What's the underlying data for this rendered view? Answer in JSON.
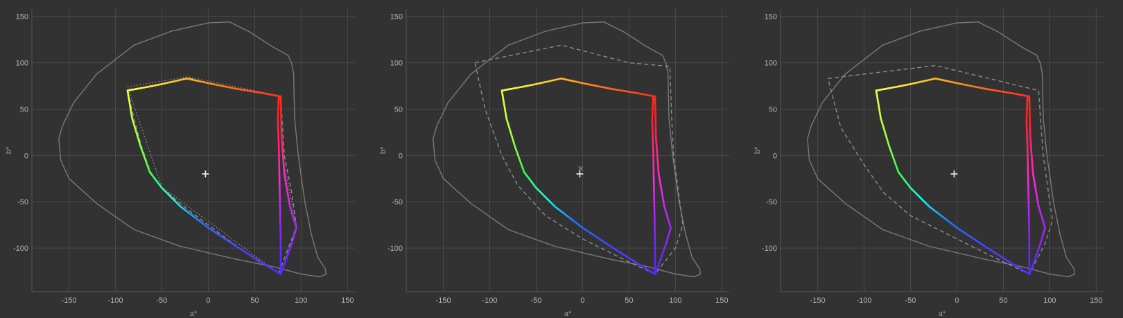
{
  "colors": {
    "background": "#323232",
    "grid": "#4a4a4a",
    "tick_text": "#b4b4b4",
    "axis_text": "#9a9a9a",
    "frame": "#555555",
    "spectral_locus": "#7a7a7a",
    "dashed_gamut": "#8c8c8c",
    "marker": "#f0f0f0",
    "hue_stops": [
      "#ff2222",
      "#ff8c14",
      "#ffff3c",
      "#3cff46",
      "#14ffe6",
      "#1e78ff",
      "#5a28ff",
      "#ff28dc",
      "#ff2222"
    ]
  },
  "chart_data": [
    {
      "type": "line",
      "xlabel": "a*",
      "ylabel": "b*",
      "xlim": [
        -190,
        158
      ],
      "ylim": [
        -147,
        158
      ],
      "xticks": [
        -150,
        -100,
        -50,
        0,
        50,
        100,
        150
      ],
      "yticks": [
        150,
        100,
        50,
        0,
        -50,
        -100
      ],
      "grid": true,
      "outer_locus": [
        [
          -161,
          18
        ],
        [
          -157,
          32
        ],
        [
          -145,
          57
        ],
        [
          -120,
          88
        ],
        [
          -80,
          119
        ],
        [
          -40,
          134
        ],
        [
          0,
          143
        ],
        [
          23,
          144
        ],
        [
          45,
          133
        ],
        [
          68,
          118
        ],
        [
          86,
          108
        ],
        [
          90,
          99
        ],
        [
          92,
          88
        ],
        [
          93,
          40
        ],
        [
          97,
          0
        ],
        [
          104,
          -50
        ],
        [
          111,
          -85
        ],
        [
          118,
          -110
        ],
        [
          126,
          -122
        ],
        [
          127,
          -128
        ],
        [
          120,
          -131
        ],
        [
          100,
          -128
        ],
        [
          70,
          -120
        ],
        [
          30,
          -112
        ],
        [
          -30,
          -98
        ],
        [
          -80,
          -80
        ],
        [
          -120,
          -52
        ],
        [
          -150,
          -25
        ],
        [
          -159,
          -5
        ],
        [
          -161,
          18
        ]
      ],
      "gamut": [
        [
          78,
          -128
        ],
        [
          78,
          -90
        ],
        [
          77,
          -40
        ],
        [
          76,
          10
        ],
        [
          75,
          37
        ],
        [
          76,
          64
        ],
        [
          60,
          67
        ],
        [
          30,
          72
        ],
        [
          0,
          78
        ],
        [
          -23,
          83
        ],
        [
          -50,
          77
        ],
        [
          -65,
          74
        ],
        [
          -87,
          70
        ],
        [
          -82,
          40
        ],
        [
          -73,
          10
        ],
        [
          -63,
          -18
        ],
        [
          -50,
          -35
        ],
        [
          -30,
          -55
        ],
        [
          0,
          -78
        ],
        [
          30,
          -98
        ],
        [
          60,
          -117
        ],
        [
          78,
          -128
        ],
        [
          82,
          -118
        ],
        [
          90,
          -95
        ],
        [
          95,
          -78
        ],
        [
          88,
          -55
        ],
        [
          82,
          -20
        ],
        [
          79,
          20
        ],
        [
          78,
          64
        ]
      ],
      "dashed_gamut": [
        [
          76,
          -127
        ],
        [
          95,
          -77
        ],
        [
          90,
          -40
        ],
        [
          82,
          0
        ],
        [
          78,
          64
        ],
        [
          60,
          67
        ],
        [
          30,
          72
        ],
        [
          0,
          78
        ],
        [
          -22,
          84
        ],
        [
          -50,
          77
        ],
        [
          -65,
          74
        ],
        [
          -87,
          71
        ],
        [
          -80,
          40
        ],
        [
          -72,
          10
        ],
        [
          -62,
          -18
        ],
        [
          -50,
          -35
        ],
        [
          -20,
          -60
        ],
        [
          20,
          -90
        ],
        [
          55,
          -115
        ],
        [
          76,
          -127
        ]
      ],
      "dotted_gamut": [
        [
          -87,
          74
        ],
        [
          -22,
          85
        ],
        [
          78,
          64
        ],
        [
          80,
          0
        ],
        [
          95,
          -76
        ],
        [
          78,
          -129
        ],
        [
          -50,
          -34
        ],
        [
          -87,
          74
        ]
      ],
      "white_plus": [
        -3,
        -20
      ],
      "white_cross": null
    },
    {
      "type": "line",
      "xlabel": "a*",
      "ylabel": "b*",
      "xlim": [
        -190,
        158
      ],
      "ylim": [
        -147,
        158
      ],
      "xticks": [
        -150,
        -100,
        -50,
        0,
        50,
        100,
        150
      ],
      "yticks": [
        150,
        100,
        50,
        0,
        -50,
        -100
      ],
      "grid": true,
      "outer_locus": [
        [
          -161,
          18
        ],
        [
          -157,
          32
        ],
        [
          -145,
          57
        ],
        [
          -120,
          88
        ],
        [
          -80,
          119
        ],
        [
          -40,
          134
        ],
        [
          0,
          143
        ],
        [
          23,
          144
        ],
        [
          45,
          133
        ],
        [
          68,
          118
        ],
        [
          86,
          108
        ],
        [
          90,
          99
        ],
        [
          92,
          88
        ],
        [
          93,
          40
        ],
        [
          97,
          0
        ],
        [
          104,
          -50
        ],
        [
          111,
          -85
        ],
        [
          118,
          -110
        ],
        [
          126,
          -122
        ],
        [
          127,
          -128
        ],
        [
          120,
          -131
        ],
        [
          100,
          -128
        ],
        [
          70,
          -120
        ],
        [
          30,
          -112
        ],
        [
          -30,
          -98
        ],
        [
          -80,
          -80
        ],
        [
          -120,
          -52
        ],
        [
          -150,
          -25
        ],
        [
          -159,
          -5
        ],
        [
          -161,
          18
        ]
      ],
      "gamut": [
        [
          78,
          -128
        ],
        [
          78,
          -90
        ],
        [
          77,
          -40
        ],
        [
          76,
          10
        ],
        [
          75,
          37
        ],
        [
          76,
          64
        ],
        [
          60,
          67
        ],
        [
          30,
          72
        ],
        [
          0,
          78
        ],
        [
          -23,
          83
        ],
        [
          -50,
          77
        ],
        [
          -65,
          74
        ],
        [
          -87,
          70
        ],
        [
          -82,
          40
        ],
        [
          -73,
          10
        ],
        [
          -63,
          -18
        ],
        [
          -50,
          -35
        ],
        [
          -30,
          -55
        ],
        [
          0,
          -78
        ],
        [
          30,
          -98
        ],
        [
          60,
          -117
        ],
        [
          78,
          -128
        ],
        [
          82,
          -118
        ],
        [
          90,
          -95
        ],
        [
          95,
          -78
        ],
        [
          88,
          -55
        ],
        [
          82,
          -20
        ],
        [
          79,
          20
        ],
        [
          78,
          64
        ]
      ],
      "dashed_gamut": [
        [
          -116,
          100
        ],
        [
          -23,
          119
        ],
        [
          50,
          100
        ],
        [
          94,
          96
        ],
        [
          96,
          40
        ],
        [
          98,
          0
        ],
        [
          106,
          -60
        ],
        [
          108,
          -75
        ],
        [
          100,
          -100
        ],
        [
          78,
          -128
        ],
        [
          50,
          -115
        ],
        [
          0,
          -90
        ],
        [
          -40,
          -65
        ],
        [
          -70,
          -32
        ],
        [
          -87,
          0
        ],
        [
          -105,
          50
        ],
        [
          -116,
          100
        ]
      ],
      "dotted_gamut": null,
      "white_plus": [
        -3,
        -20
      ],
      "white_cross": [
        -2,
        -14
      ]
    },
    {
      "type": "line",
      "xlabel": "a*",
      "ylabel": "b*",
      "xlim": [
        -190,
        158
      ],
      "ylim": [
        -147,
        158
      ],
      "xticks": [
        -150,
        -100,
        -50,
        0,
        50,
        100,
        150
      ],
      "yticks": [
        150,
        100,
        50,
        0,
        -50,
        -100
      ],
      "grid": true,
      "outer_locus": [
        [
          -161,
          18
        ],
        [
          -157,
          32
        ],
        [
          -145,
          57
        ],
        [
          -120,
          88
        ],
        [
          -80,
          119
        ],
        [
          -40,
          134
        ],
        [
          0,
          143
        ],
        [
          23,
          144
        ],
        [
          45,
          133
        ],
        [
          68,
          118
        ],
        [
          86,
          108
        ],
        [
          90,
          99
        ],
        [
          92,
          88
        ],
        [
          93,
          40
        ],
        [
          97,
          0
        ],
        [
          104,
          -50
        ],
        [
          111,
          -85
        ],
        [
          118,
          -110
        ],
        [
          126,
          -122
        ],
        [
          127,
          -128
        ],
        [
          120,
          -131
        ],
        [
          100,
          -128
        ],
        [
          70,
          -120
        ],
        [
          30,
          -112
        ],
        [
          -30,
          -98
        ],
        [
          -80,
          -80
        ],
        [
          -120,
          -52
        ],
        [
          -150,
          -25
        ],
        [
          -159,
          -5
        ],
        [
          -161,
          18
        ]
      ],
      "gamut": [
        [
          78,
          -128
        ],
        [
          78,
          -90
        ],
        [
          77,
          -40
        ],
        [
          76,
          10
        ],
        [
          75,
          37
        ],
        [
          76,
          64
        ],
        [
          60,
          67
        ],
        [
          30,
          72
        ],
        [
          0,
          78
        ],
        [
          -23,
          83
        ],
        [
          -50,
          77
        ],
        [
          -65,
          74
        ],
        [
          -87,
          70
        ],
        [
          -82,
          40
        ],
        [
          -73,
          10
        ],
        [
          -63,
          -18
        ],
        [
          -50,
          -35
        ],
        [
          -30,
          -55
        ],
        [
          0,
          -78
        ],
        [
          30,
          -98
        ],
        [
          60,
          -117
        ],
        [
          78,
          -128
        ],
        [
          82,
          -118
        ],
        [
          90,
          -95
        ],
        [
          95,
          -78
        ],
        [
          88,
          -55
        ],
        [
          82,
          -20
        ],
        [
          79,
          20
        ],
        [
          78,
          64
        ]
      ],
      "dashed_gamut": [
        [
          -139,
          83
        ],
        [
          -23,
          97
        ],
        [
          88,
          70
        ],
        [
          90,
          40
        ],
        [
          93,
          0
        ],
        [
          100,
          -50
        ],
        [
          103,
          -70
        ],
        [
          95,
          -95
        ],
        [
          78,
          -128
        ],
        [
          40,
          -110
        ],
        [
          0,
          -90
        ],
        [
          -50,
          -65
        ],
        [
          -79,
          -40
        ],
        [
          -100,
          -10
        ],
        [
          -125,
          30
        ],
        [
          -139,
          83
        ]
      ],
      "dotted_gamut": null,
      "white_plus": [
        -3,
        -20
      ],
      "white_cross": null
    }
  ]
}
